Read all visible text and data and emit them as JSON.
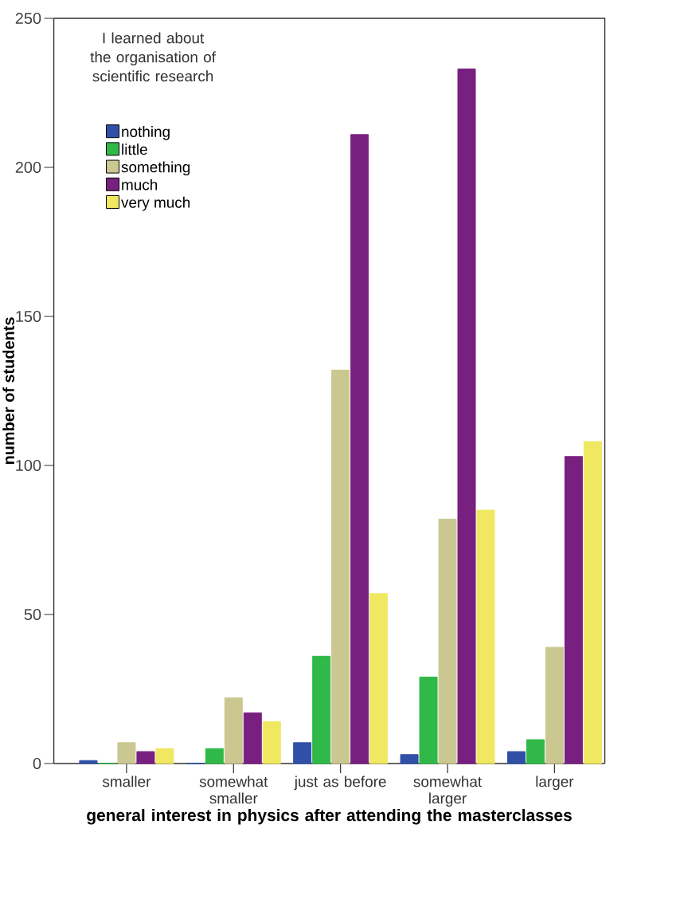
{
  "chart_data": {
    "type": "bar",
    "xlabel": "general interest in physics after attending the masterclasses",
    "ylabel": "number of students",
    "legend_title": "I learned about the organisation of scientific research",
    "categories": [
      "smaller",
      "somewhat smaller",
      "just as before",
      "somewhat larger",
      "larger"
    ],
    "series": [
      {
        "name": "nothing",
        "color": "#3050a8",
        "values": [
          1,
          0,
          7,
          3,
          4
        ]
      },
      {
        "name": "little",
        "color": "#30b848",
        "values": [
          0,
          5,
          36,
          29,
          8
        ]
      },
      {
        "name": "something",
        "color": "#cac890",
        "values": [
          7,
          22,
          132,
          82,
          39
        ]
      },
      {
        "name": "much",
        "color": "#782080",
        "values": [
          4,
          17,
          211,
          233,
          103
        ]
      },
      {
        "name": "very much",
        "color": "#f0e860",
        "values": [
          5,
          14,
          57,
          85,
          108
        ]
      }
    ],
    "ylim": [
      0,
      250
    ],
    "yticks": [
      0,
      50,
      100,
      150,
      200,
      250
    ],
    "grid": false,
    "legend": "top left"
  }
}
